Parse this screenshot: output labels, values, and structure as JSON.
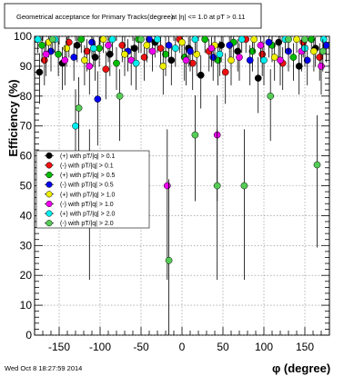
{
  "chart_data": {
    "type": "scatter",
    "title": "Geometrical acceptance for Primary Tracks",
    "title_overlap": "(degree)",
    "title_cut": "at |η| <= 1.0 at pT > 0.11",
    "xlabel": "φ (degree)",
    "ylabel": "Efficiency (%)",
    "xlim": [
      -180,
      180
    ],
    "ylim": [
      0,
      100
    ],
    "xticks": [
      -150,
      -100,
      -50,
      0,
      50,
      100,
      150
    ],
    "xtick_labels": [
      "-150",
      "-100",
      "-50",
      "0",
      "50",
      "100",
      "150"
    ],
    "yticks": [
      0,
      10,
      20,
      30,
      40,
      50,
      60,
      70,
      80,
      90,
      100
    ],
    "ytick_labels": [
      "0",
      "10",
      "20",
      "30",
      "40",
      "50",
      "60",
      "70",
      "80",
      "90",
      "100"
    ],
    "grid": true,
    "legend_position": "left",
    "timestamp": "Wed Oct  8 18:27:59 2014",
    "series": [
      {
        "name": "(+) with pT/|q| > 0.1",
        "color": "#000000",
        "points": [
          [
            -174,
            88
          ],
          [
            -146,
            91
          ],
          [
            -128,
            97
          ],
          [
            -106,
            93
          ],
          [
            -88,
            94
          ],
          [
            -58,
            96
          ],
          [
            -33,
            98
          ],
          [
            -13,
            92
          ],
          [
            8,
            96
          ],
          [
            23,
            87
          ],
          [
            48,
            97
          ],
          [
            68,
            95
          ],
          [
            93,
            86
          ],
          [
            118,
            98
          ],
          [
            143,
            90
          ],
          [
            163,
            96
          ]
        ]
      },
      {
        "name": "(-) with pT/|q| > 0.1",
        "color": "#ee1111",
        "points": [
          [
            -168,
            92
          ],
          [
            -138,
            98
          ],
          [
            -116,
            95
          ],
          [
            -93,
            89
          ],
          [
            -73,
            97
          ],
          [
            -46,
            93
          ],
          [
            -26,
            96
          ],
          [
            -3,
            99
          ],
          [
            13,
            91
          ],
          [
            33,
            95
          ],
          [
            53,
            88
          ],
          [
            78,
            99
          ],
          [
            98,
            94
          ],
          [
            123,
            91
          ],
          [
            148,
            98
          ],
          [
            168,
            93
          ]
        ]
      },
      {
        "name": "(+) with pT/|q| > 0.5",
        "color": "#00bb00",
        "points": [
          [
            -171,
            97
          ],
          [
            -151,
            94
          ],
          [
            -123,
            99
          ],
          [
            -101,
            96
          ],
          [
            -80,
            91
          ],
          [
            -53,
            99
          ],
          [
            -20,
            94
          ],
          [
            3,
            93
          ],
          [
            28,
            99
          ],
          [
            44,
            92
          ],
          [
            63,
            98
          ],
          [
            86,
            95
          ],
          [
            110,
            97
          ],
          [
            136,
            93
          ],
          [
            158,
            99
          ]
        ]
      },
      {
        "name": "(-) with pT/|q| > 0.5",
        "color": "#0000ee",
        "points": [
          [
            -160,
            95
          ],
          [
            -132,
            93
          ],
          [
            -110,
            98
          ],
          [
            -103,
            79
          ],
          [
            -66,
            95
          ],
          [
            -40,
            99
          ],
          [
            -16,
            97
          ],
          [
            10,
            95
          ],
          [
            38,
            93
          ],
          [
            58,
            97
          ],
          [
            83,
            92
          ],
          [
            106,
            98
          ],
          [
            130,
            95
          ],
          [
            153,
            92
          ],
          [
            176,
            97
          ]
        ]
      },
      {
        "name": "(+) with pT/|q| > 1.0",
        "color": "#eeee00",
        "points": [
          [
            -163,
            98
          ],
          [
            -141,
            96
          ],
          [
            -119,
            92
          ],
          [
            -96,
            99
          ],
          [
            -70,
            94
          ],
          [
            -43,
            97
          ],
          [
            -23,
            90
          ],
          [
            0,
            98
          ],
          [
            18,
            94
          ],
          [
            40,
            97
          ],
          [
            60,
            92
          ],
          [
            88,
            99
          ],
          [
            113,
            93
          ],
          [
            140,
            99
          ],
          [
            161,
            95
          ]
        ]
      },
      {
        "name": "(-) with pT/|q| > 1.0",
        "color": "#ee00ee",
        "points": [
          [
            -166,
            94
          ],
          [
            -143,
            92
          ],
          [
            -113,
            90
          ],
          [
            -90,
            97
          ],
          [
            -62,
            92
          ],
          [
            -36,
            95
          ],
          [
            -18,
            50
          ],
          [
            5,
            92
          ],
          [
            36,
            96
          ],
          [
            43,
            67
          ],
          [
            70,
            93
          ],
          [
            96,
            97
          ],
          [
            120,
            92
          ],
          [
            146,
            95
          ],
          [
            170,
            90
          ]
        ]
      },
      {
        "name": "(+) with pT/|q| > 2.0",
        "color": "#00eeee",
        "points": [
          [
            -176,
            99
          ],
          [
            -155,
            99
          ],
          [
            -130,
            70
          ],
          [
            -108,
            96
          ],
          [
            -85,
            99
          ],
          [
            -56,
            91
          ],
          [
            -30,
            99
          ],
          [
            -8,
            96
          ],
          [
            16,
            99
          ],
          [
            46,
            94
          ],
          [
            73,
            99
          ],
          [
            100,
            92
          ],
          [
            126,
            99
          ],
          [
            150,
            96
          ],
          [
            173,
            99
          ]
        ]
      },
      {
        "name": "(-) with pT/|q| > 2.0",
        "color": "#55cc55",
        "points": [
          [
            -158,
            99
          ],
          [
            -126,
            76
          ],
          [
            -113,
            50
          ],
          [
            -76,
            80
          ],
          [
            -50,
            99
          ],
          [
            -16,
            25
          ],
          [
            16,
            67
          ],
          [
            43,
            50
          ],
          [
            76,
            50
          ],
          [
            108,
            80
          ],
          [
            130,
            99
          ],
          [
            150,
            99
          ],
          [
            165,
            57
          ],
          [
            172,
            95
          ]
        ]
      }
    ]
  }
}
